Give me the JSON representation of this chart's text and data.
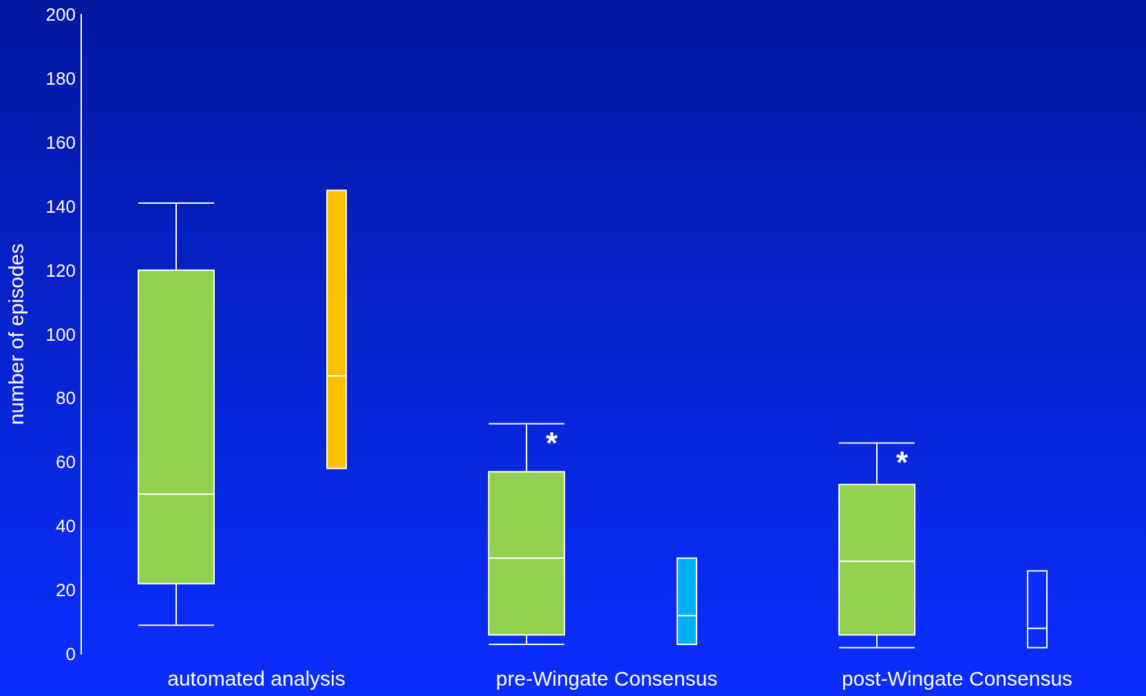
{
  "chart_data": {
    "type": "box",
    "ylabel": "number of episodes",
    "categories": [
      "automated analysis",
      "pre-Wingate Consensus",
      "post-Wingate Consensus"
    ],
    "series": [
      {
        "color": "#92d050",
        "boxes": [
          {
            "low": 9,
            "q1": 22,
            "median": 50,
            "q3": 120,
            "high": 141
          },
          {
            "low": 3,
            "q1": 6,
            "median": 30,
            "q3": 57,
            "high": 72
          },
          {
            "low": 2,
            "q1": 6,
            "median": 29,
            "q3": 53,
            "high": 66
          }
        ]
      },
      {
        "colors": [
          "#ffc000",
          "#00b0f0",
          "#0a2eff"
        ],
        "boxes": [
          {
            "low": 58,
            "q1": 58,
            "median": 87,
            "q3": 145,
            "high": 145
          },
          {
            "low": 3,
            "q1": 3,
            "median": 12,
            "q3": 30,
            "high": 30
          },
          {
            "low": 2,
            "q1": 2,
            "median": 8,
            "q3": 26,
            "high": 26
          }
        ]
      }
    ],
    "annotations": [
      "*",
      "*"
    ],
    "ylim": [
      0,
      200
    ],
    "yticks": [
      0,
      20,
      40,
      60,
      80,
      100,
      120,
      140,
      160,
      180,
      200
    ],
    "grid": false
  }
}
